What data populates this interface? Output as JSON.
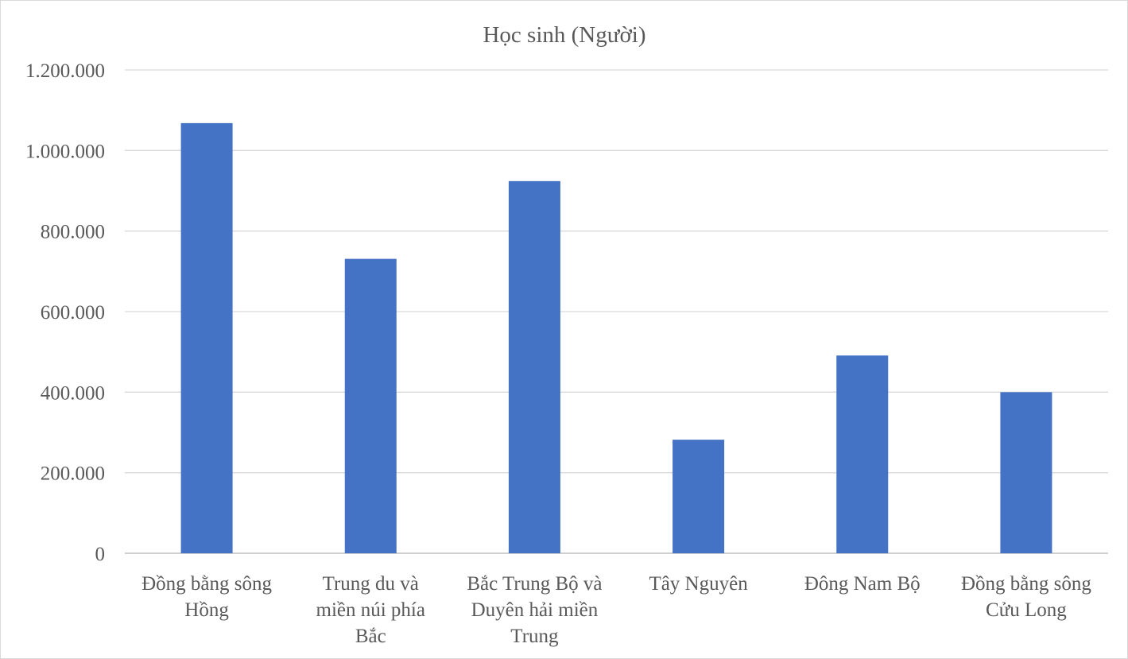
{
  "chart_data": {
    "type": "bar",
    "title": "Học sinh (Người)",
    "categories": [
      [
        "Đồng bằng sông",
        "Hồng"
      ],
      [
        "Trung du và",
        "miền núi phía",
        "Bắc"
      ],
      [
        "Bắc Trung Bộ và",
        "Duyên hải miền",
        "Trung"
      ],
      [
        "Tây Nguyên"
      ],
      [
        "Đông Nam Bộ"
      ],
      [
        "Đồng bằng sông",
        "Cửu Long"
      ]
    ],
    "values": [
      1068000,
      731000,
      924000,
      282000,
      491000,
      400000
    ],
    "ylim": [
      0,
      1200000
    ],
    "yticks": [
      0,
      200000,
      400000,
      600000,
      800000,
      1000000,
      1200000
    ],
    "ytick_labels": [
      "0",
      "200.000",
      "400.000",
      "600.000",
      "800.000",
      "1.000.000",
      "1.200.000"
    ],
    "xlabel": "",
    "ylabel": "",
    "grid": true,
    "legend": "none",
    "bar_color": "#4472c4"
  }
}
